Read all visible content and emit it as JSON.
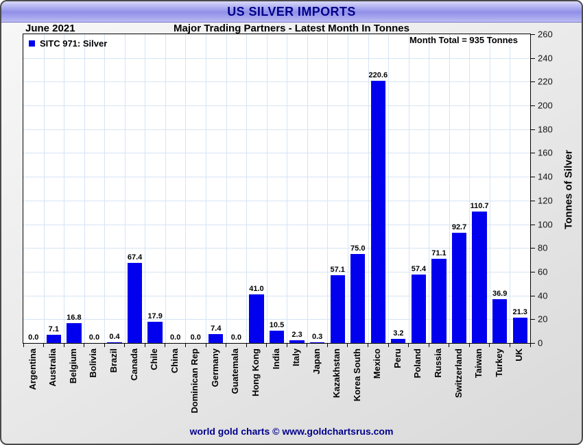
{
  "chart_data": {
    "type": "bar",
    "title": "US SILVER IMPORTS",
    "period": "June 2021",
    "subtitle": "Major Trading Partners - Latest Month In Tonnes",
    "annotation": "Month Total = 935 Tonnes",
    "legend": [
      {
        "label": "SITC 971: Silver",
        "color": "#0000ee"
      }
    ],
    "ylabel": "Tonnes of Silver",
    "ylim": [
      0,
      260
    ],
    "ytick_step": 20,
    "grid": true,
    "legend_position": "top-left-inside",
    "y_axis_side": "right",
    "bar_color": "#0000ee",
    "categories": [
      "Argentina",
      "Australia",
      "Belgium",
      "Bolivia",
      "Brazil",
      "Canada",
      "Chile",
      "China",
      "Dominican Rep",
      "Germany",
      "Guatemala",
      "Hong Kong",
      "India",
      "Italy",
      "Japan",
      "Kazakhstan",
      "Korea South",
      "Mexico",
      "Peru",
      "Poland",
      "Russia",
      "Switzerland",
      "Taiwan",
      "Turkey",
      "UK"
    ],
    "values": [
      0.0,
      7.1,
      16.8,
      0.0,
      0.4,
      67.4,
      17.9,
      0.0,
      0.0,
      7.4,
      0.0,
      41.0,
      10.5,
      2.3,
      0.3,
      57.1,
      75.0,
      220.6,
      3.2,
      57.4,
      71.1,
      92.7,
      110.7,
      36.9,
      21.3
    ]
  },
  "footer": {
    "text": "world gold charts © www.goldchartsrus.com"
  },
  "colors": {
    "bar": "#0000ee",
    "gridline": "#d5e4f4",
    "title_text": "#00008b",
    "footer_text": "#00008b",
    "titlebar_gradient_top": "#d9d9fb",
    "titlebar_gradient_mid": "#9090e8",
    "plot_background": "#ffffff",
    "window_background": "#e6e6e6"
  }
}
